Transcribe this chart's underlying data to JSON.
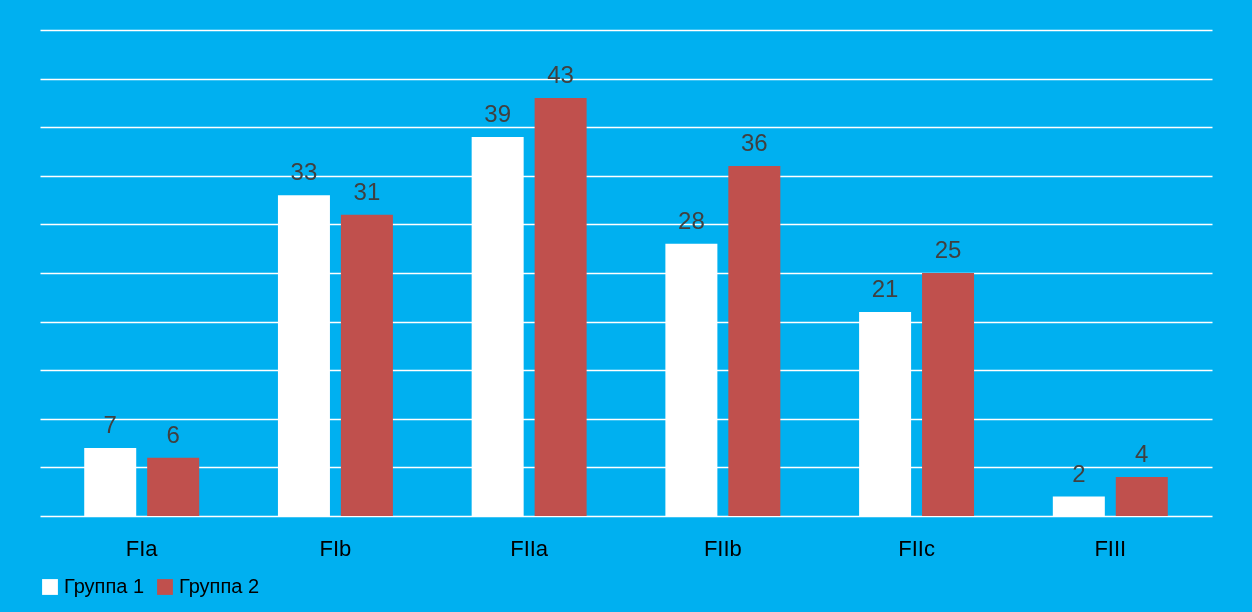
{
  "chart_data": {
    "type": "bar",
    "categories": [
      "FIa",
      "FIb",
      "FIIa",
      "FIIb",
      "FIIc",
      "FIII"
    ],
    "series": [
      {
        "name": "Группа 1",
        "color": "#ffffff",
        "values": [
          7,
          33,
          39,
          28,
          21,
          2
        ]
      },
      {
        "name": "Группа 2",
        "color": "#c0504d",
        "values": [
          6,
          31,
          43,
          36,
          25,
          4
        ]
      }
    ],
    "ylim": [
      0,
      50
    ],
    "yticks": [
      {
        "value": 0,
        "label": null
      },
      {
        "value": 5,
        "label": null
      },
      {
        "value": 10,
        "label": null
      },
      {
        "value": 15,
        "label": null
      },
      {
        "value": 20,
        "label": null
      },
      {
        "value": 25,
        "label": null
      },
      {
        "value": 30,
        "label": null
      },
      {
        "value": 35,
        "label": null
      },
      {
        "value": 40,
        "label": null
      },
      {
        "value": 45,
        "label": null
      },
      {
        "value": 50,
        "label": null
      }
    ],
    "grid": "y",
    "tick_labels": "x",
    "data_labels": true,
    "legend": "bottom"
  }
}
